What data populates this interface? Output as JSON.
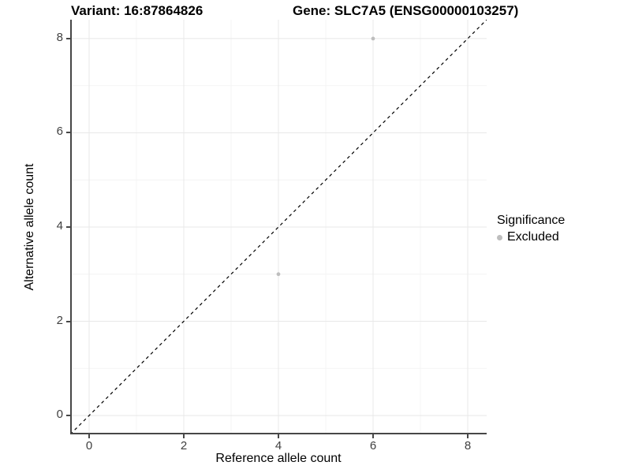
{
  "figure": {
    "background": "#ffffff"
  },
  "chart_data": {
    "type": "scatter",
    "title_left": "Variant: 16:87864826",
    "title_right": "Gene: SLC7A5 (ENSG00000103257)",
    "xlabel": "Reference allele count",
    "ylabel": "Alternative allele count",
    "xlim": [
      -0.4,
      8.4
    ],
    "ylim": [
      -0.4,
      8.4
    ],
    "x_ticks": [
      0,
      2,
      4,
      6,
      8
    ],
    "y_ticks": [
      0,
      2,
      4,
      6,
      8
    ],
    "x_minor_ticks": [
      1,
      3,
      5,
      7
    ],
    "y_minor_ticks": [
      1,
      3,
      5,
      7
    ],
    "grid": true,
    "legend_position": "right",
    "reference_line": {
      "slope": 1,
      "intercept": 0,
      "style": "dashed",
      "color": "#000000"
    },
    "series": [
      {
        "name": "Excluded",
        "color": "#bebebe",
        "points": [
          {
            "x": 6,
            "y": 8
          },
          {
            "x": 4,
            "y": 3
          }
        ]
      }
    ],
    "legend": {
      "title": "Significance",
      "entries": [
        {
          "label": "Excluded",
          "color": "#bebebe"
        }
      ]
    },
    "colors": {
      "axis_line": "#474747",
      "tick_mark": "#474747",
      "tick_label": "#404040",
      "grid_major": "#e8e8e8",
      "grid_minor": "#f4f4f4",
      "point": "#bebebe",
      "title": "#000000"
    }
  }
}
